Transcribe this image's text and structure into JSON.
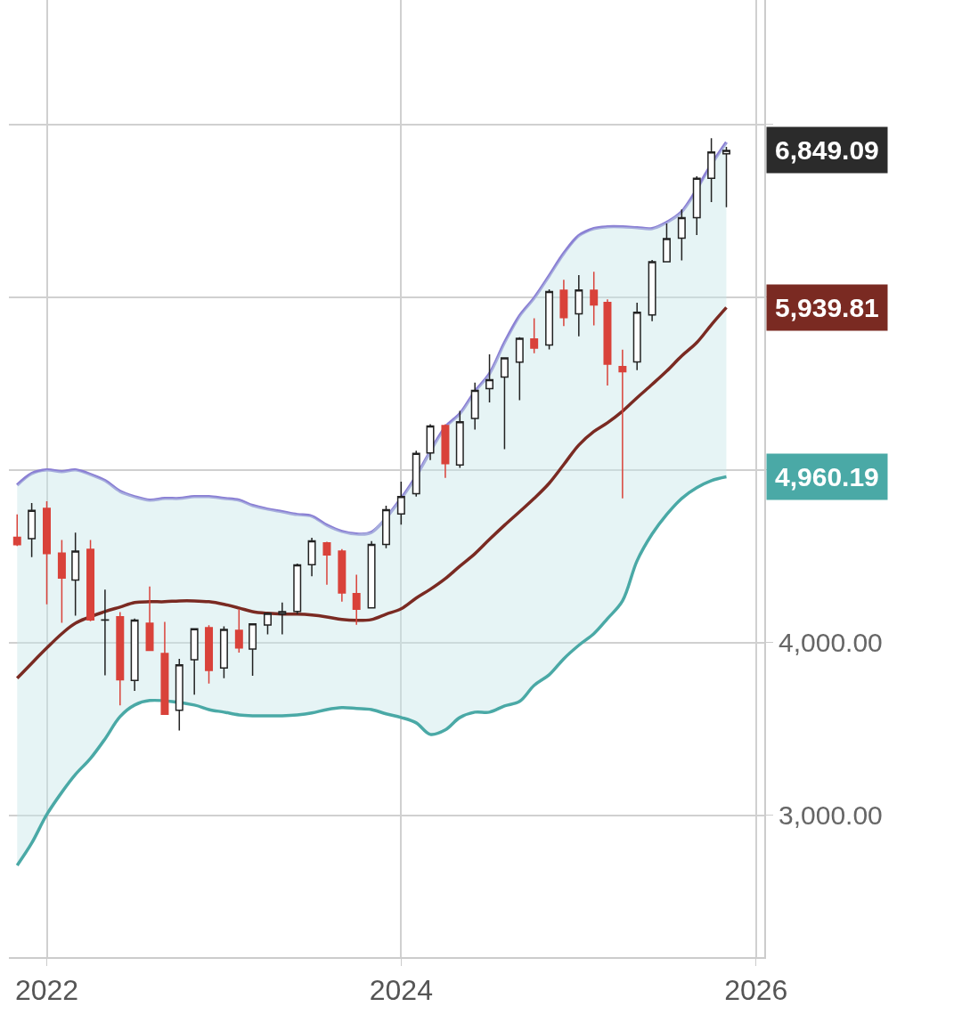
{
  "chart_data": {
    "type": "candlestick",
    "x": [
      "2021-11",
      "2021-12",
      "2022-01",
      "2022-02",
      "2022-03",
      "2022-04",
      "2022-05",
      "2022-06",
      "2022-07",
      "2022-08",
      "2022-09",
      "2022-10",
      "2022-11",
      "2022-12",
      "2023-01",
      "2023-02",
      "2023-03",
      "2023-04",
      "2023-05",
      "2023-06",
      "2023-07",
      "2023-08",
      "2023-09",
      "2023-10",
      "2023-11",
      "2023-12",
      "2024-01",
      "2024-02",
      "2024-03",
      "2024-04",
      "2024-05",
      "2024-06",
      "2024-07",
      "2024-08",
      "2024-09",
      "2024-10",
      "2024-11",
      "2024-12",
      "2025-01",
      "2025-02",
      "2025-03",
      "2025-04",
      "2025-05",
      "2025-06",
      "2025-07",
      "2025-08",
      "2025-09",
      "2025-10",
      "2025-11"
    ],
    "ohlc": [
      [
        4610,
        4743,
        4560,
        4567
      ],
      [
        4602,
        4808,
        4495,
        4766
      ],
      [
        4778,
        4818,
        4222,
        4516
      ],
      [
        4519,
        4595,
        4115,
        4374
      ],
      [
        4363,
        4637,
        4157,
        4530
      ],
      [
        4540,
        4594,
        4124,
        4132
      ],
      [
        4131,
        4307,
        3811,
        4132
      ],
      [
        4150,
        4177,
        3637,
        3785
      ],
      [
        3781,
        4140,
        3721,
        4130
      ],
      [
        4113,
        4325,
        3955,
        3955
      ],
      [
        3937,
        4120,
        3584,
        3586
      ],
      [
        3609,
        3906,
        3491,
        3872
      ],
      [
        3901,
        4080,
        3699,
        4080
      ],
      [
        4087,
        4101,
        3764,
        3840
      ],
      [
        3853,
        4095,
        3794,
        4077
      ],
      [
        4071,
        4195,
        3943,
        3970
      ],
      [
        3963,
        4110,
        3809,
        4109
      ],
      [
        4102,
        4170,
        4048,
        4169
      ],
      [
        4166,
        4232,
        4048,
        4180
      ],
      [
        4181,
        4458,
        4166,
        4450
      ],
      [
        4451,
        4607,
        4385,
        4589
      ],
      [
        4578,
        4584,
        4335,
        4508
      ],
      [
        4530,
        4541,
        4238,
        4288
      ],
      [
        4284,
        4393,
        4104,
        4194
      ],
      [
        4202,
        4588,
        4197,
        4568
      ],
      [
        4568,
        4793,
        4547,
        4770
      ],
      [
        4745,
        4932,
        4683,
        4846
      ],
      [
        4862,
        5111,
        4845,
        5096
      ],
      [
        5098,
        5265,
        5057,
        5254
      ],
      [
        5257,
        5264,
        4954,
        5036
      ],
      [
        5029,
        5342,
        5012,
        5278
      ],
      [
        5298,
        5505,
        5234,
        5460
      ],
      [
        5471,
        5669,
        5391,
        5522
      ],
      [
        5537,
        5651,
        5120,
        5648
      ],
      [
        5624,
        5768,
        5403,
        5762
      ],
      [
        5758,
        5878,
        5675,
        5705
      ],
      [
        5723,
        6045,
        5697,
        6032
      ],
      [
        6040,
        6100,
        5833,
        5882
      ],
      [
        5903,
        6128,
        5773,
        6041
      ],
      [
        6040,
        6147,
        5837,
        5955
      ],
      [
        5969,
        5987,
        5488,
        5612
      ],
      [
        5598,
        5696,
        4835,
        5569
      ],
      [
        5625,
        5968,
        5578,
        5912
      ],
      [
        5897,
        6215,
        5861,
        6205
      ],
      [
        6205,
        6427,
        6201,
        6339
      ],
      [
        6341,
        6508,
        6212,
        6460
      ],
      [
        6460,
        6700,
        6360,
        6688
      ],
      [
        6688,
        6920,
        6550,
        6840
      ],
      [
        6830,
        6870,
        6520,
        6849.09
      ]
    ],
    "series": [
      {
        "type": "line",
        "color": "#8a7fd4",
        "values": [
          4912,
          4979,
          5000,
          4990,
          5000,
          4974,
          4938,
          4876,
          4845,
          4825,
          4835,
          4835,
          4845,
          4845,
          4835,
          4825,
          4794,
          4773,
          4758,
          4742,
          4732,
          4680,
          4644,
          4629,
          4639,
          null,
          4835,
          4964,
          null,
          5247,
          5325,
          5454,
          5557,
          5737,
          5892,
          5995,
          6124,
          6253,
          6356,
          6397,
          6407,
          6407,
          6402,
          6397,
          6433,
          6495,
          null,
          6768,
          6897
        ]
      },
      {
        "type": "line",
        "color": "#7a2a22",
        "values": [
          3794,
          3881,
          3969,
          4052,
          4113,
          null,
          4180,
          4206,
          4232,
          4237,
          4237,
          4242,
          4242,
          4237,
          4222,
          4201,
          4180,
          4170,
          4165,
          4165,
          4160,
          4149,
          4134,
          4129,
          4134,
          4165,
          4196,
          4258,
          4309,
          4371,
          4443,
          4515,
          4598,
          4680,
          4758,
          4835,
          4923,
          5031,
          5144,
          5222,
          5273,
          5340,
          5418,
          5495,
          5572,
          5660,
          5737,
          5840,
          5939.81
        ],
        "upper": [
          4912,
          4979,
          5000,
          4990,
          5000,
          4974,
          4938,
          4876,
          4845,
          4825,
          4835,
          4835,
          4845,
          4845,
          4835,
          4825,
          4794,
          4773,
          4758,
          4742,
          4732,
          4680,
          4644,
          4629,
          4639,
          4732,
          4835,
          4964,
          5119,
          5247,
          5325,
          5454,
          5557,
          5737,
          5892,
          5995,
          6124,
          6253,
          6356,
          6397,
          6407,
          6407,
          6402,
          6397,
          6433,
          6495,
          6613,
          6768,
          6897
        ],
        "lower": [
          2711,
          2840,
          3005,
          3134,
          3237,
          3330,
          3443,
          3572,
          3639,
          3665,
          3670,
          3655,
          3639,
          3613,
          3598,
          3582,
          3577,
          3577,
          3577,
          3582,
          3593,
          3613,
          3624,
          3619,
          3613,
          3588,
          3567,
          3536,
          3469,
          3495,
          3567,
          3598,
          3598,
          3634,
          3660,
          3753,
          3814,
          3907,
          3985,
          4052,
          4139,
          4242,
          4474,
          4629,
          4742,
          4835,
          4897,
          4938,
          4960.19
        ]
      },
      {
        "type": "line",
        "color": "#4aa9a6",
        "values": [
          2711,
          2840,
          3005,
          3134,
          3237,
          3330,
          3443,
          3572,
          3639,
          3665,
          null,
          null,
          3639,
          3613,
          3598,
          3582,
          3577,
          3577,
          3577,
          3582,
          3593,
          3613,
          3624,
          3619,
          3613,
          3588,
          3567,
          3536,
          3469,
          3495,
          3567,
          3598,
          3598,
          3634,
          3660,
          3753,
          3814,
          3907,
          3985,
          4052,
          4139,
          4242,
          4474,
          4629,
          4742,
          4835,
          4897,
          4938,
          4960.19
        ]
      }
    ],
    "xlim": [
      "2021-10-15",
      "2026-01-18"
    ],
    "xticks": [
      {
        "value": "2022",
        "label": "2022"
      },
      {
        "value": "2024",
        "label": "2024"
      },
      {
        "value": "2026",
        "label": "2026"
      }
    ],
    "ylim": [
      2180,
      7720
    ],
    "yticks": [
      {
        "value": 3000,
        "label": "3,000.00"
      },
      {
        "value": 4000,
        "label": "4,000.00"
      },
      {
        "value": 5000,
        "label": null
      },
      {
        "value": 6000,
        "label": null
      },
      {
        "value": 7000,
        "label": null
      }
    ],
    "grid": true,
    "annotations": [
      {
        "text": "6,849.09",
        "x": "2025-11",
        "y": 6849.09
      },
      {
        "text": "5,939.81",
        "x": "2025-11",
        "y": 5939.81
      },
      {
        "text": "4,960.19",
        "x": "2025-11",
        "y": 4960.19
      }
    ]
  }
}
